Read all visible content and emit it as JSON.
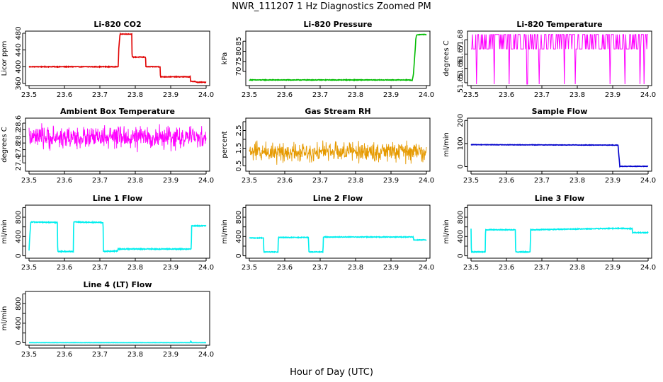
{
  "title": "NWR_111207  1 Hz Diagnostics Zoomed PM",
  "xlabel": "Hour of Day (UTC)",
  "chart_data": [
    {
      "type": "line",
      "title": "Li-820 CO2",
      "ylabel": "Licor ppm",
      "color": "#e00000",
      "xlim": [
        23.49,
        24.01
      ],
      "ylim": [
        355,
        485
      ],
      "xticks": [
        "23.5",
        "23.6",
        "23.7",
        "23.8",
        "23.9",
        "24.0"
      ],
      "yticks": [
        "360",
        "400",
        "440",
        "480"
      ],
      "band": 1.5,
      "noise": 0,
      "x": [
        23.5,
        23.752,
        23.753,
        23.757,
        23.758,
        23.79,
        23.791,
        23.829,
        23.83,
        23.87,
        23.871,
        23.955,
        23.956,
        23.97,
        23.971,
        24.0
      ],
      "y": [
        400,
        400,
        440,
        478,
        478,
        478,
        423,
        423,
        400,
        400,
        376,
        376,
        365,
        365,
        363,
        363
      ]
    },
    {
      "type": "line",
      "title": "Li-820 Pressure",
      "ylabel": "kPa",
      "color": "#00bb00",
      "xlim": [
        23.49,
        24.01
      ],
      "ylim": [
        63,
        90
      ],
      "xticks": [
        "23.5",
        "23.6",
        "23.7",
        "23.8",
        "23.9",
        "24.0"
      ],
      "yticks": [
        "70",
        "75",
        "80",
        "85"
      ],
      "band": 0.3,
      "noise": 0,
      "x": [
        23.5,
        23.95,
        23.96,
        23.963,
        23.968,
        23.97,
        23.972,
        23.98,
        24.0
      ],
      "y": [
        65.8,
        65.8,
        65.6,
        68,
        80,
        86,
        88,
        88.3,
        88.3
      ]
    },
    {
      "type": "line",
      "title": "Li-820 Temperature",
      "ylabel": "degrees C",
      "color": "#ff00ff",
      "xlim": [
        23.49,
        24.01
      ],
      "ylim": [
        51.648,
        51.686
      ],
      "xticks": [
        "23.5",
        "23.6",
        "23.7",
        "23.8",
        "23.9",
        "24.0"
      ],
      "yticks": [
        "51.65",
        "51.66",
        "51.67",
        "51.68"
      ],
      "levels": [
        51.6837,
        51.6735
      ],
      "band": 0,
      "noise": 0.004,
      "x": [
        23.5,
        23.525,
        23.57,
        23.6,
        23.64,
        23.68,
        23.72,
        23.77,
        23.81,
        23.82,
        23.87,
        23.91,
        23.99
      ],
      "y": [
        51.6837,
        51.6735,
        51.6837,
        51.6735,
        51.6837,
        51.6735,
        51.6837,
        51.6735,
        51.6837,
        51.6735,
        51.6837,
        51.6735,
        51.6837
      ]
    },
    {
      "type": "line",
      "title": "Ambient Box Temperature",
      "ylabel": "degrees C",
      "color": "#ff00ff",
      "xlim": [
        23.49,
        24.01
      ],
      "ylim": [
        27.15,
        28.75
      ],
      "xticks": [
        "23.5",
        "23.6",
        "23.7",
        "23.8",
        "23.9",
        "24.0"
      ],
      "yticks": [
        "27.4",
        "27.6",
        "27.8",
        "28.0",
        "28.2",
        "28.4",
        "28.6"
      ],
      "tick_labels_shown": [
        "27.4",
        "27.8",
        "28.2",
        "28.6"
      ],
      "band": 0,
      "noise": 0.32,
      "x": [
        23.5,
        24.0
      ],
      "y": [
        28.16,
        28.16
      ]
    },
    {
      "type": "line",
      "title": "Gas Stream RH",
      "ylabel": "percent",
      "color": "#e69a00",
      "xlim": [
        23.49,
        24.01
      ],
      "ylim": [
        0.2,
        3.2
      ],
      "xticks": [
        "23.5",
        "23.6",
        "23.7",
        "23.8",
        "23.9",
        "24.0"
      ],
      "yticks": [
        "0.5",
        "1.0",
        "1.5",
        "2.0",
        "2.5",
        "3.0"
      ],
      "tick_labels_shown": [
        "0.5",
        "1.5",
        "2.5"
      ],
      "band": 0,
      "noise": 0.55,
      "x": [
        23.5,
        24.0
      ],
      "y": [
        1.3,
        1.3
      ]
    },
    {
      "type": "line",
      "title": "Sample Flow",
      "ylabel": "ml/min",
      "color": "#0000cc",
      "xlim": [
        23.49,
        24.01
      ],
      "ylim": [
        -20,
        210
      ],
      "xticks": [
        "23.5",
        "23.6",
        "23.7",
        "23.8",
        "23.9",
        "24.0"
      ],
      "yticks": [
        "0",
        "100",
        "200"
      ],
      "band": 2,
      "noise": 0,
      "x": [
        23.5,
        23.915,
        23.92,
        24.0
      ],
      "y": [
        95,
        93,
        1,
        1
      ]
    },
    {
      "type": "line",
      "title": "Line 1 Flow",
      "ylabel": "ml/min",
      "color": "#00eeee",
      "xlim": [
        23.49,
        24.01
      ],
      "ylim": [
        -50,
        1050
      ],
      "xticks": [
        "23.5",
        "23.6",
        "23.7",
        "23.8",
        "23.9",
        "24.0"
      ],
      "yticks": [
        "0",
        "200",
        "400",
        "600",
        "800",
        "1000"
      ],
      "tick_labels_shown": [
        "0",
        "400",
        "800"
      ],
      "band": 18,
      "noise": 0,
      "x": [
        23.5,
        23.502,
        23.505,
        23.58,
        23.581,
        23.625,
        23.626,
        23.709,
        23.71,
        23.75,
        23.751,
        23.958,
        23.959,
        24.0
      ],
      "y": [
        100,
        400,
        700,
        690,
        90,
        90,
        700,
        690,
        90,
        100,
        140,
        140,
        620,
        620
      ]
    },
    {
      "type": "line",
      "title": "Line 2 Flow",
      "ylabel": "ml/min",
      "color": "#00eeee",
      "xlim": [
        23.49,
        24.01
      ],
      "ylim": [
        -50,
        1050
      ],
      "xticks": [
        "23.5",
        "23.6",
        "23.7",
        "23.8",
        "23.9",
        "24.0"
      ],
      "yticks": [
        "0",
        "200",
        "400",
        "600",
        "800",
        "1000"
      ],
      "tick_labels_shown": [
        "0",
        "400",
        "800"
      ],
      "band": 14,
      "noise": 0,
      "x": [
        23.5,
        23.54,
        23.541,
        23.581,
        23.582,
        23.667,
        23.668,
        23.708,
        23.709,
        23.963,
        23.964,
        24.0
      ],
      "y": [
        370,
        370,
        80,
        80,
        380,
        380,
        80,
        80,
        390,
        390,
        330,
        330
      ]
    },
    {
      "type": "line",
      "title": "Line 3 Flow",
      "ylabel": "ml/min",
      "color": "#00eeee",
      "xlim": [
        23.49,
        24.01
      ],
      "ylim": [
        -50,
        1050
      ],
      "xticks": [
        "23.5",
        "23.6",
        "23.7",
        "23.8",
        "23.9",
        "24.0"
      ],
      "yticks": [
        "0",
        "200",
        "400",
        "600",
        "800",
        "1000"
      ],
      "tick_labels_shown": [
        "0",
        "400",
        "800"
      ],
      "band": 16,
      "noise": 0,
      "x": [
        23.5,
        23.501,
        23.54,
        23.541,
        23.625,
        23.626,
        23.667,
        23.668,
        23.92,
        23.955,
        23.956,
        24.0
      ],
      "y": [
        570,
        80,
        80,
        540,
        540,
        80,
        80,
        540,
        570,
        560,
        480,
        480
      ]
    },
    {
      "type": "line",
      "title": "Line 4 (LT) Flow",
      "ylabel": "ml/min",
      "color": "#00eeee",
      "xlim": [
        23.49,
        24.01
      ],
      "ylim": [
        -50,
        1050
      ],
      "xticks": [
        "23.5",
        "23.6",
        "23.7",
        "23.8",
        "23.9",
        "24.0"
      ],
      "yticks": [
        "0",
        "200",
        "400",
        "600",
        "800",
        "1000"
      ],
      "tick_labels_shown": [
        "0",
        "400",
        "800"
      ],
      "band": 4,
      "noise": 0,
      "x": [
        23.5,
        23.955,
        23.957,
        23.959,
        24.0
      ],
      "y": [
        2,
        2,
        40,
        2,
        2
      ]
    }
  ]
}
